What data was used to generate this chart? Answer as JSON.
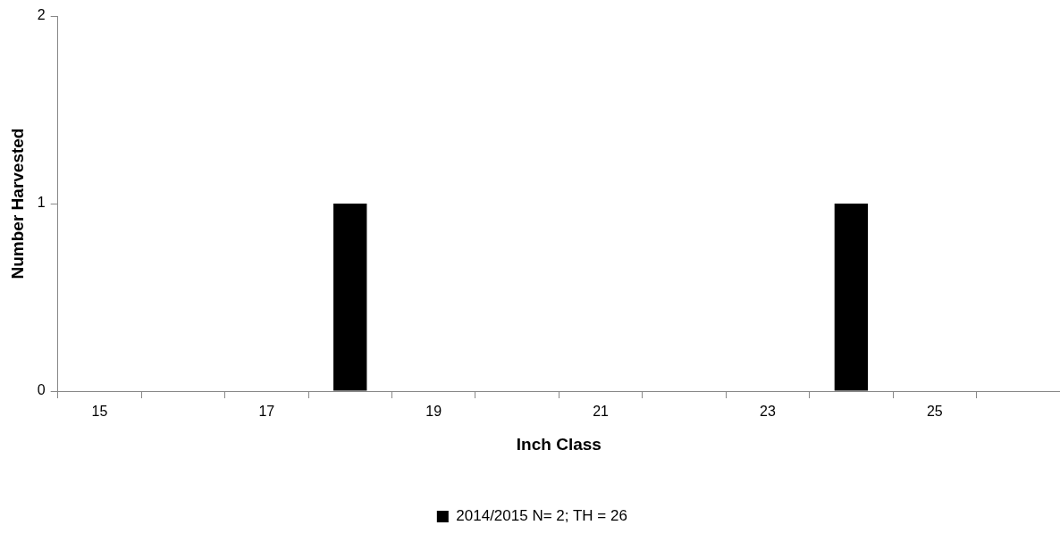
{
  "chart_data": {
    "type": "bar",
    "xlabel": "Inch Class",
    "ylabel": "Number Harvested",
    "categories": [
      "15",
      null,
      "17",
      null,
      "19",
      null,
      "21",
      null,
      "23",
      null,
      "25",
      null
    ],
    "series": [
      {
        "name": "2014/2015 N= 2; TH = 26",
        "color": "#000000",
        "values": [
          0,
          0,
          0,
          1,
          0,
          0,
          0,
          0,
          0,
          1,
          0,
          0
        ]
      }
    ],
    "ylim": [
      0,
      2
    ],
    "yticks": [
      0,
      1,
      2
    ],
    "grid": false,
    "legend": "bottom"
  }
}
